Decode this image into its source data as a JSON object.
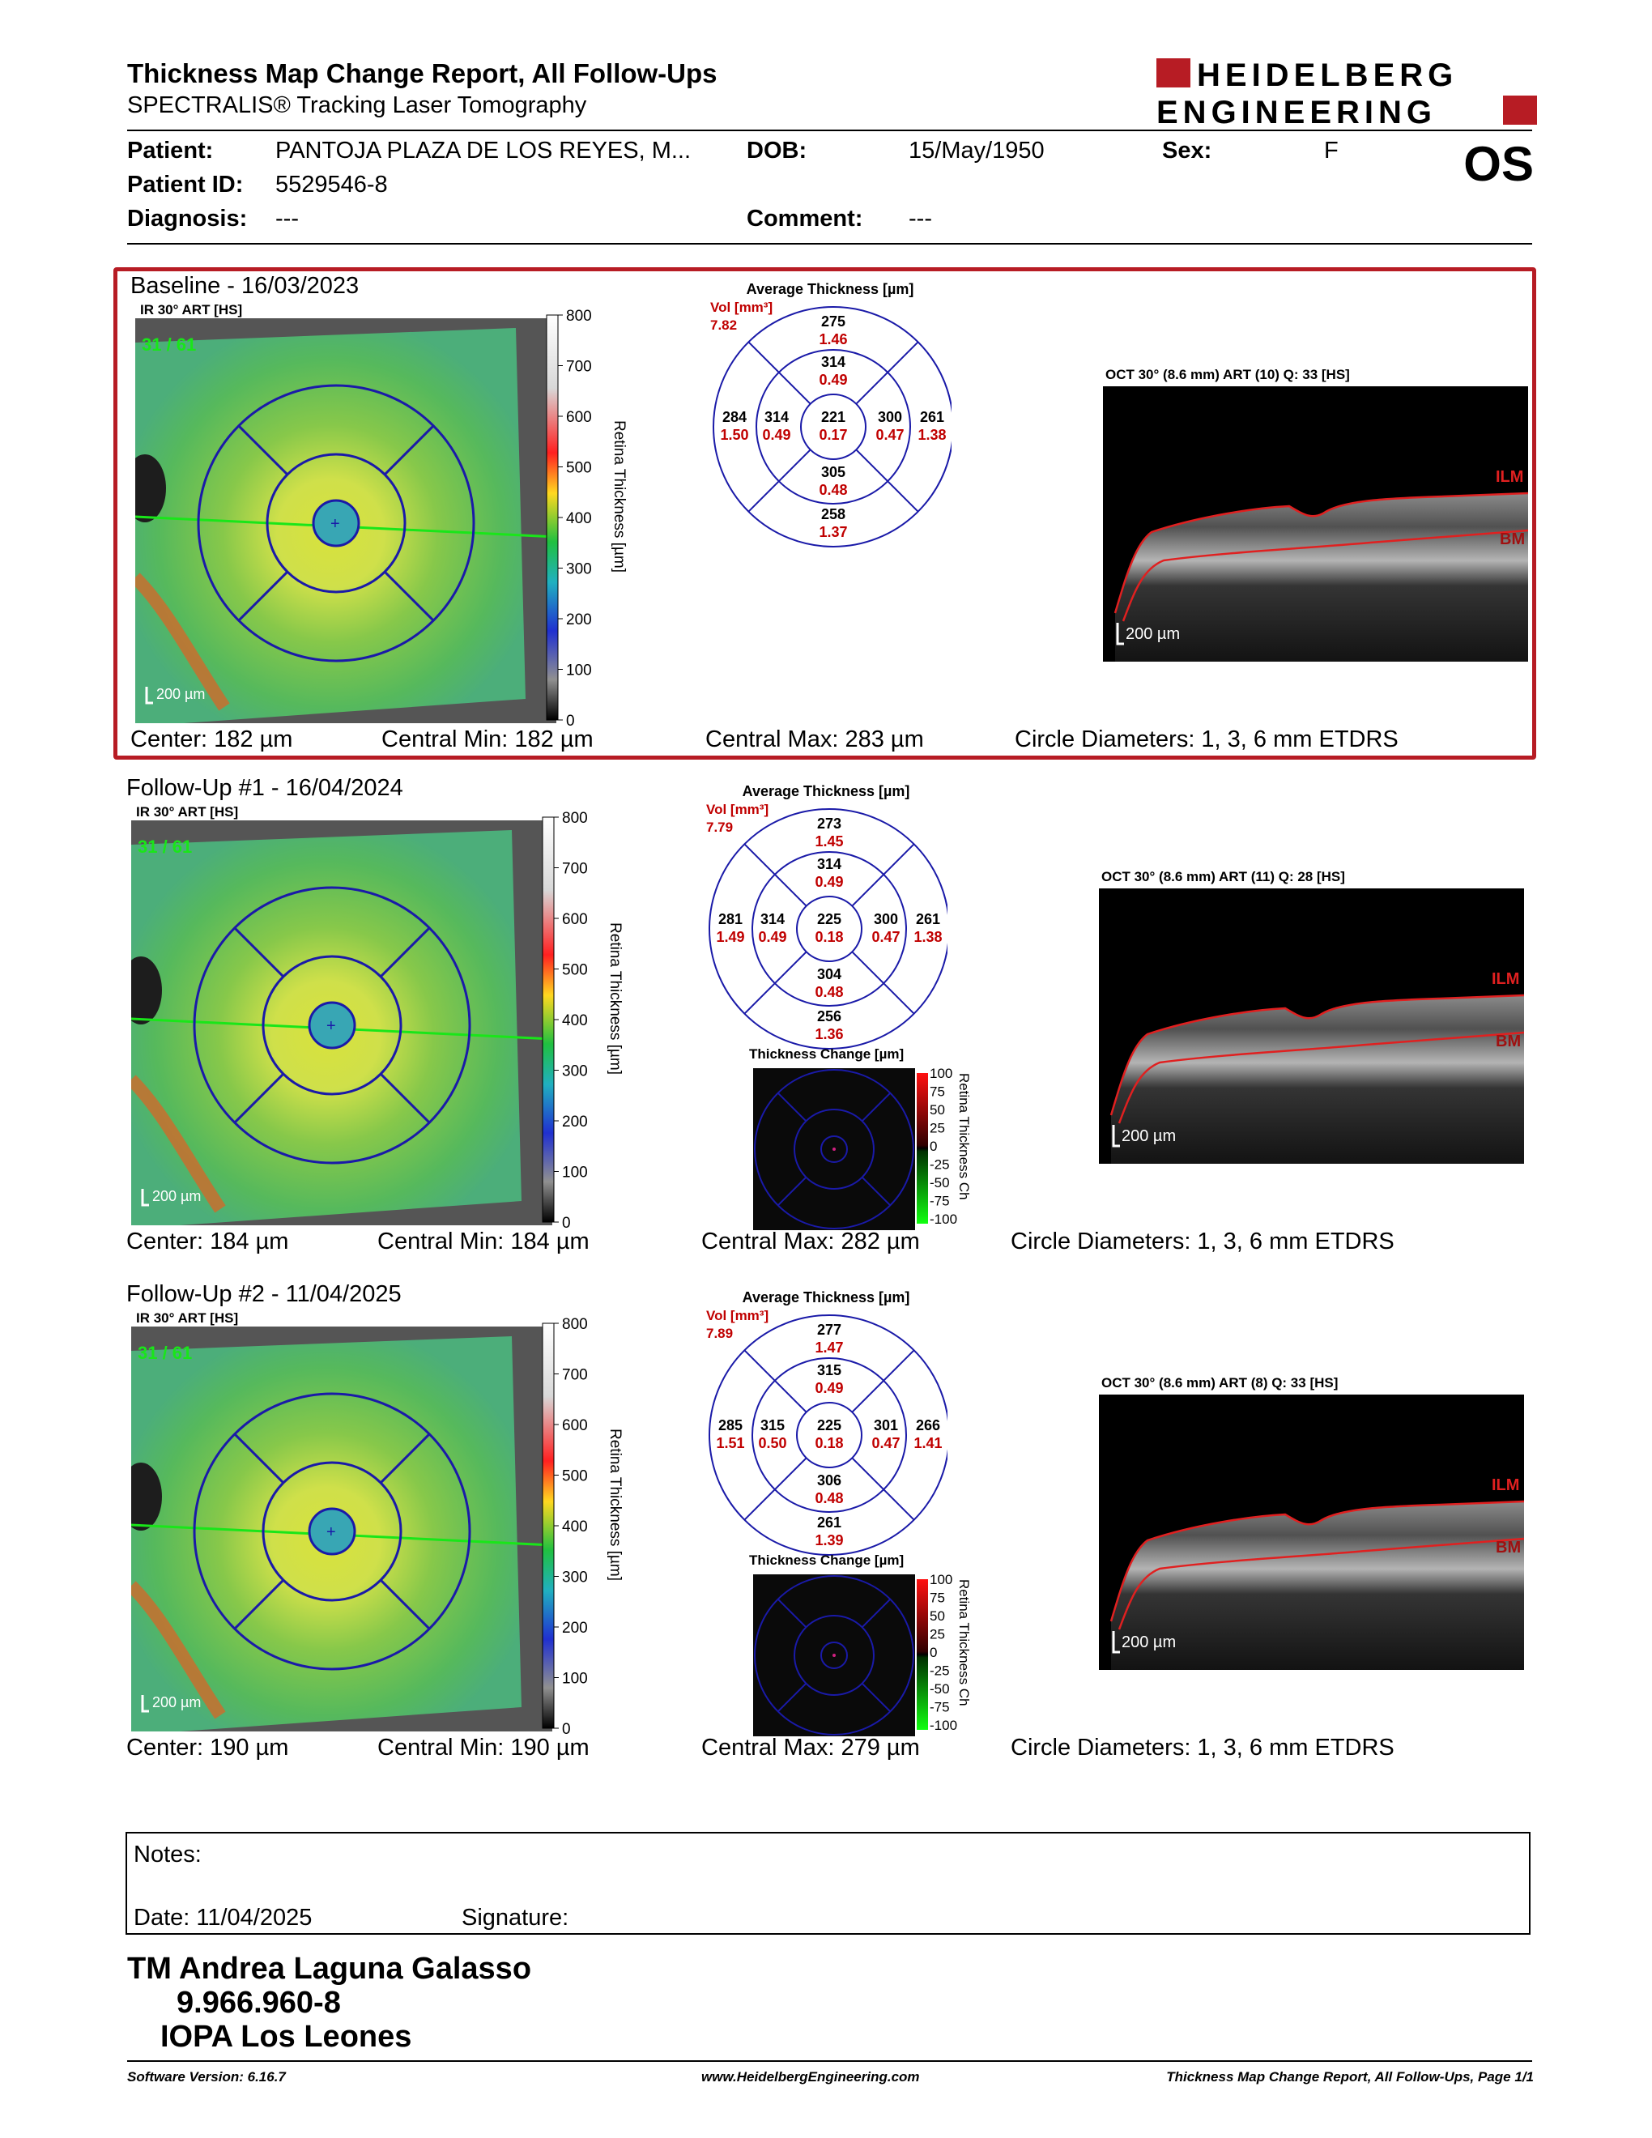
{
  "header": {
    "title": "Thickness Map Change Report, All Follow-Ups",
    "subtitle": "SPECTRALIS® Tracking Laser Tomography",
    "logo_line1": "HEIDELBERG",
    "logo_line2": "ENGINEERING",
    "eye": "OS"
  },
  "patient": {
    "patient_label": "Patient:",
    "patient_value": "PANTOJA PLAZA DE LOS REYES, M...",
    "dob_label": "DOB:",
    "dob_value": "15/May/1950",
    "sex_label": "Sex:",
    "sex_value": "F",
    "id_label": "Patient ID:",
    "id_value": "5529546-8",
    "diagnosis_label": "Diagnosis:",
    "diagnosis_value": "---",
    "comment_label": "Comment:",
    "comment_value": "---"
  },
  "common": {
    "ir_label": "IR 30° ART [HS]",
    "frame_counter": "31 / 61",
    "scale_bar": "200 µm",
    "colorbar_ticks": [
      "800",
      "700",
      "600",
      "500",
      "400",
      "300",
      "200",
      "100",
      "0"
    ],
    "colorbar_title": "Retina Thickness [µm]",
    "avg_title": "Average Thickness [µm]",
    "vol_label": "Vol [mm³]",
    "change_title": "Thickness Change [µm]",
    "change_ticks": [
      "100",
      "75",
      "50",
      "25",
      "0",
      "-25",
      "-50",
      "-75",
      "-100"
    ],
    "change_axis": "Retina Thickness Ch",
    "ilm": "ILM",
    "bm": "BM"
  },
  "sections": [
    {
      "title": "Baseline - 16/03/2023",
      "vol_total": "7.82",
      "sectors": {
        "outer_sup": [
          "275",
          "1.46"
        ],
        "inner_sup": [
          "314",
          "0.49"
        ],
        "outer_temp": [
          "284",
          "1.50"
        ],
        "inner_temp": [
          "314",
          "0.49"
        ],
        "center": [
          "221",
          "0.17"
        ],
        "inner_nas": [
          "300",
          "0.47"
        ],
        "outer_nas": [
          "261",
          "1.38"
        ],
        "inner_inf": [
          "305",
          "0.48"
        ],
        "outer_inf": [
          "258",
          "1.37"
        ]
      },
      "oct_label": "OCT 30° (8.6 mm) ART (10) Q: 33 [HS]",
      "center": "Center: 182 µm",
      "central_min": "Central Min: 182 µm",
      "central_max": "Central Max: 283 µm",
      "circle_diam": "Circle Diameters:  1, 3, 6 mm ETDRS"
    },
    {
      "title": "Follow-Up #1 - 16/04/2024",
      "vol_total": "7.79",
      "sectors": {
        "outer_sup": [
          "273",
          "1.45"
        ],
        "inner_sup": [
          "314",
          "0.49"
        ],
        "outer_temp": [
          "281",
          "1.49"
        ],
        "inner_temp": [
          "314",
          "0.49"
        ],
        "center": [
          "225",
          "0.18"
        ],
        "inner_nas": [
          "300",
          "0.47"
        ],
        "outer_nas": [
          "261",
          "1.38"
        ],
        "inner_inf": [
          "304",
          "0.48"
        ],
        "outer_inf": [
          "256",
          "1.36"
        ]
      },
      "oct_label": "OCT 30° (8.6 mm) ART (11) Q: 28 [HS]",
      "center": "Center: 184 µm",
      "central_min": "Central Min: 184 µm",
      "central_max": "Central Max: 282 µm",
      "circle_diam": "Circle Diameters:  1, 3, 6 mm ETDRS"
    },
    {
      "title": "Follow-Up #2 - 11/04/2025",
      "vol_total": "7.89",
      "sectors": {
        "outer_sup": [
          "277",
          "1.47"
        ],
        "inner_sup": [
          "315",
          "0.49"
        ],
        "outer_temp": [
          "285",
          "1.51"
        ],
        "inner_temp": [
          "315",
          "0.50"
        ],
        "center": [
          "225",
          "0.18"
        ],
        "inner_nas": [
          "301",
          "0.47"
        ],
        "outer_nas": [
          "266",
          "1.41"
        ],
        "inner_inf": [
          "306",
          "0.48"
        ],
        "outer_inf": [
          "261",
          "1.39"
        ]
      },
      "oct_label": "OCT 30° (8.6 mm) ART (8) Q: 33 [HS]",
      "center": "Center: 190 µm",
      "central_min": "Central Min: 190 µm",
      "central_max": "Central Max: 279 µm",
      "circle_diam": "Circle Diameters:  1, 3, 6 mm ETDRS"
    }
  ],
  "notes": {
    "notes_label": "Notes:",
    "date_label": "Date: 11/04/2025",
    "signature_label": "Signature:"
  },
  "signature_block": {
    "name": "TM Andrea Laguna Galasso",
    "rut": "9.966.960-8",
    "institution": "IOPA Los Leones"
  },
  "footer": {
    "software": "Software Version: 6.16.7",
    "website": "www.HeidelbergEngineering.com",
    "page": "Thickness Map Change Report, All Follow-Ups, Page 1/1"
  }
}
